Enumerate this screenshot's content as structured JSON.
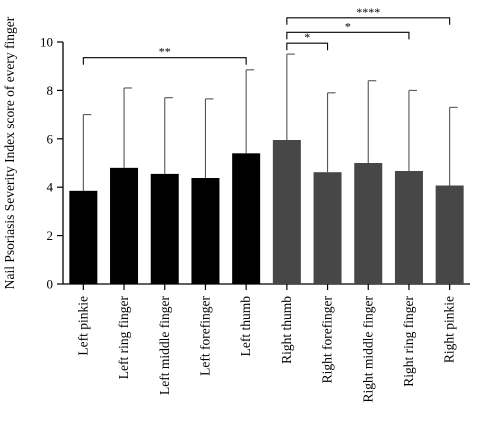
{
  "chart_data": {
    "type": "bar",
    "title": "",
    "xlabel": "",
    "ylabel": "Nail Psoriasis Severity Index score of every finger",
    "ylim": [
      0,
      10
    ],
    "yticks": [
      0,
      2,
      4,
      6,
      8,
      10
    ],
    "grid": false,
    "categories": [
      "Left pinkie",
      "Left ring finger",
      "Left middle finger",
      "Left forefinger",
      "Left thumb",
      "Right thumb",
      "Right forefinger",
      "Right middle finger",
      "Right ring finger",
      "Right pinkie"
    ],
    "values": [
      3.85,
      4.8,
      4.55,
      4.38,
      5.4,
      5.95,
      4.62,
      5.0,
      4.67,
      4.07
    ],
    "error_upper": [
      7.0,
      8.1,
      7.7,
      7.65,
      8.85,
      9.5,
      7.9,
      8.4,
      8.0,
      7.3
    ],
    "bar_colors": [
      "#000000",
      "#000000",
      "#000000",
      "#000000",
      "#000000",
      "#474747",
      "#474747",
      "#474747",
      "#474747",
      "#474747"
    ],
    "significance": [
      {
        "from": 0,
        "to": 4,
        "label": "**",
        "y": 9.35
      },
      {
        "from": 5,
        "to": 6,
        "label": "*",
        "y": 9.95
      },
      {
        "from": 5,
        "to": 8,
        "label": "*",
        "y": 10.4
      },
      {
        "from": 5,
        "to": 9,
        "label": "****",
        "y": 11.0
      }
    ]
  }
}
